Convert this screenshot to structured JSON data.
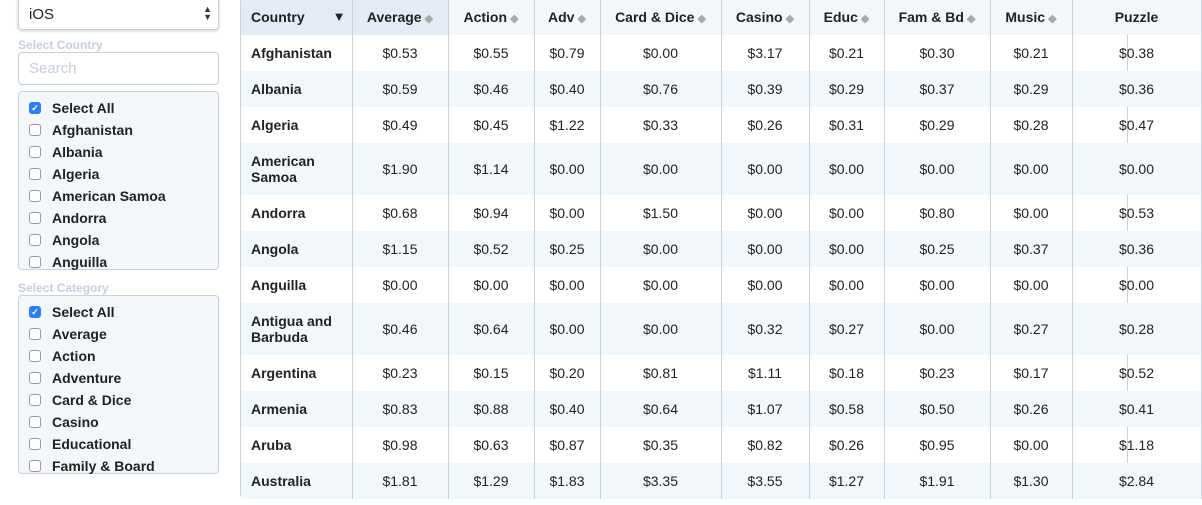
{
  "platform_select": {
    "value": "iOS"
  },
  "country_filter": {
    "label": "Select Country",
    "search_placeholder": "Search",
    "items": [
      {
        "label": "Select All",
        "checked": true
      },
      {
        "label": "Afghanistan",
        "checked": false
      },
      {
        "label": "Albania",
        "checked": false
      },
      {
        "label": "Algeria",
        "checked": false
      },
      {
        "label": "American Samoa",
        "checked": false
      },
      {
        "label": "Andorra",
        "checked": false
      },
      {
        "label": "Angola",
        "checked": false
      },
      {
        "label": "Anguilla",
        "checked": false
      }
    ]
  },
  "category_filter": {
    "label": "Select Category",
    "items": [
      {
        "label": "Select All",
        "checked": true
      },
      {
        "label": "Average",
        "checked": false
      },
      {
        "label": "Action",
        "checked": false
      },
      {
        "label": "Adventure",
        "checked": false
      },
      {
        "label": "Card & Dice",
        "checked": false
      },
      {
        "label": "Casino",
        "checked": false
      },
      {
        "label": "Educational",
        "checked": false
      },
      {
        "label": "Family & Board",
        "checked": false
      }
    ]
  },
  "table": {
    "sorted_column": "Country",
    "sort_direction": "descending",
    "columns": [
      "Country",
      "Average",
      "Action",
      "Adv",
      "Card & Dice",
      "Casino",
      "Educ",
      "Fam & Bd",
      "Music",
      "Puzzle"
    ],
    "rows": [
      [
        "Afghanistan",
        "$0.53",
        "$0.55",
        "$0.79",
        "$0.00",
        "$3.17",
        "$0.21",
        "$0.30",
        "$0.21",
        "$0.38"
      ],
      [
        "Albania",
        "$0.59",
        "$0.46",
        "$0.40",
        "$0.76",
        "$0.39",
        "$0.29",
        "$0.37",
        "$0.29",
        "$0.36"
      ],
      [
        "Algeria",
        "$0.49",
        "$0.45",
        "$1.22",
        "$0.33",
        "$0.26",
        "$0.31",
        "$0.29",
        "$0.28",
        "$0.47"
      ],
      [
        "American Samoa",
        "$1.90",
        "$1.14",
        "$0.00",
        "$0.00",
        "$0.00",
        "$0.00",
        "$0.00",
        "$0.00",
        "$0.00"
      ],
      [
        "Andorra",
        "$0.68",
        "$0.94",
        "$0.00",
        "$1.50",
        "$0.00",
        "$0.00",
        "$0.80",
        "$0.00",
        "$0.53"
      ],
      [
        "Angola",
        "$1.15",
        "$0.52",
        "$0.25",
        "$0.00",
        "$0.00",
        "$0.00",
        "$0.25",
        "$0.37",
        "$0.36"
      ],
      [
        "Anguilla",
        "$0.00",
        "$0.00",
        "$0.00",
        "$0.00",
        "$0.00",
        "$0.00",
        "$0.00",
        "$0.00",
        "$0.00"
      ],
      [
        "Antigua and Barbuda",
        "$0.46",
        "$0.64",
        "$0.00",
        "$0.00",
        "$0.32",
        "$0.27",
        "$0.00",
        "$0.27",
        "$0.28"
      ],
      [
        "Argentina",
        "$0.23",
        "$0.15",
        "$0.20",
        "$0.81",
        "$1.11",
        "$0.18",
        "$0.23",
        "$0.17",
        "$0.52"
      ],
      [
        "Armenia",
        "$0.83",
        "$0.88",
        "$0.40",
        "$0.64",
        "$1.07",
        "$0.58",
        "$0.50",
        "$0.26",
        "$0.41"
      ],
      [
        "Aruba",
        "$0.98",
        "$0.63",
        "$0.87",
        "$0.35",
        "$0.82",
        "$0.26",
        "$0.95",
        "$0.00",
        "$1.18"
      ],
      [
        "Australia",
        "$1.81",
        "$1.29",
        "$1.83",
        "$3.35",
        "$3.55",
        "$1.27",
        "$1.91",
        "$1.30",
        "$2.84"
      ]
    ]
  }
}
